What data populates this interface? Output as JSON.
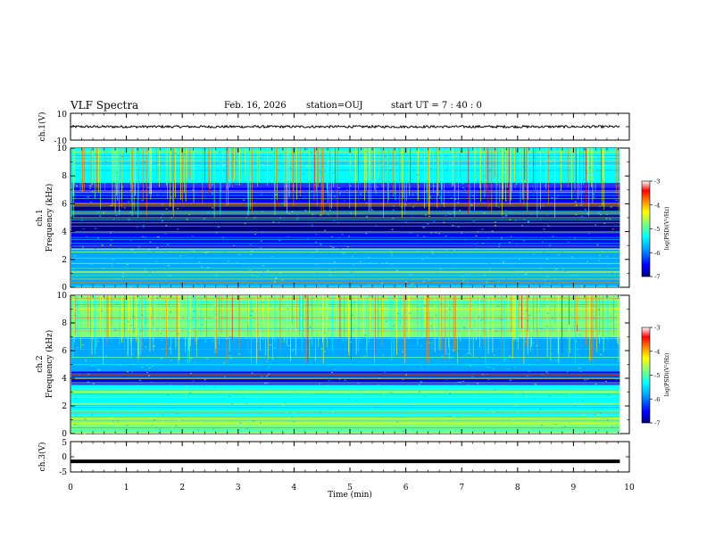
{
  "header": {
    "title": "VLF Spectra",
    "date": "Feb. 16, 2026",
    "station": "station=OUJ",
    "start_ut": "start  UT =   7 : 40 : 0"
  },
  "chart_data": [
    {
      "type": "line",
      "panel": "ch1-waveform",
      "ylabel": "ch.1(V)",
      "ylim": [
        -10,
        10
      ],
      "yticklabels": [
        "10",
        "-10"
      ],
      "baseline": 0,
      "amplitude_approx": 2
    },
    {
      "type": "heatmap",
      "panel": "ch1-spectrogram",
      "ylabel_line1": "ch.1",
      "ylabel_line2": "Frequency  (kHz)",
      "ylim": [
        0,
        10
      ],
      "yticks": [
        0,
        2,
        4,
        6,
        8,
        10
      ],
      "colorbar": {
        "label": "log(PSD)(V²/Hz)",
        "range": [
          -7,
          -3
        ],
        "ticks": [
          -3,
          -4,
          -5,
          -6,
          -7
        ]
      },
      "bands": [
        {
          "from_khz": 0.0,
          "to_khz": 1.2,
          "level": -5.6
        },
        {
          "from_khz": 1.2,
          "to_khz": 2.8,
          "level": -5.9
        },
        {
          "from_khz": 2.8,
          "to_khz": 4.0,
          "level": -6.1
        },
        {
          "from_khz": 4.0,
          "to_khz": 6.0,
          "level": -6.8
        },
        {
          "from_khz": 6.0,
          "to_khz": 7.5,
          "level": -6.2
        },
        {
          "from_khz": 7.5,
          "to_khz": 10.0,
          "level": -5.3
        }
      ]
    },
    {
      "type": "heatmap",
      "panel": "ch2-spectrogram",
      "ylabel_line1": "ch.2",
      "ylabel_line2": "Frequency  (kHz)",
      "ylim": [
        0,
        10
      ],
      "yticks": [
        0,
        2,
        4,
        6,
        8,
        10
      ],
      "colorbar": {
        "label": "log(PSD)(V²/Hz)",
        "range": [
          -7,
          -3
        ],
        "ticks": [
          -3,
          -4,
          -5,
          -6,
          -7
        ]
      },
      "bands": [
        {
          "from_khz": 0.0,
          "to_khz": 1.2,
          "level": -5.0
        },
        {
          "from_khz": 1.2,
          "to_khz": 3.5,
          "level": -5.5
        },
        {
          "from_khz": 3.5,
          "to_khz": 4.5,
          "level": -6.2
        },
        {
          "from_khz": 4.5,
          "to_khz": 7.0,
          "level": -5.9
        },
        {
          "from_khz": 7.0,
          "to_khz": 10.0,
          "level": -4.8
        }
      ]
    },
    {
      "type": "line",
      "panel": "ch3-waveform",
      "ylabel": "ch.3(V)",
      "ylim": [
        -5,
        5
      ],
      "yticklabels": [
        "5",
        "0",
        "-5"
      ],
      "baseline": -1.5
    }
  ],
  "xaxis": {
    "label": "Time  (min)",
    "xlim": [
      0,
      10
    ],
    "ticks": [
      "0",
      "1",
      "2",
      "3",
      "4",
      "5",
      "6",
      "7",
      "8",
      "9",
      "10"
    ],
    "data_end_min": 9.83
  },
  "colors": {
    "background": "#ffffff",
    "axis": "#000000",
    "trace": "#000000",
    "colormap": [
      "#00007f",
      "#0000ff",
      "#00a8ff",
      "#00ffff",
      "#7fff7f",
      "#ffff00",
      "#ff7f00",
      "#ff0000",
      "#ffffff"
    ]
  }
}
